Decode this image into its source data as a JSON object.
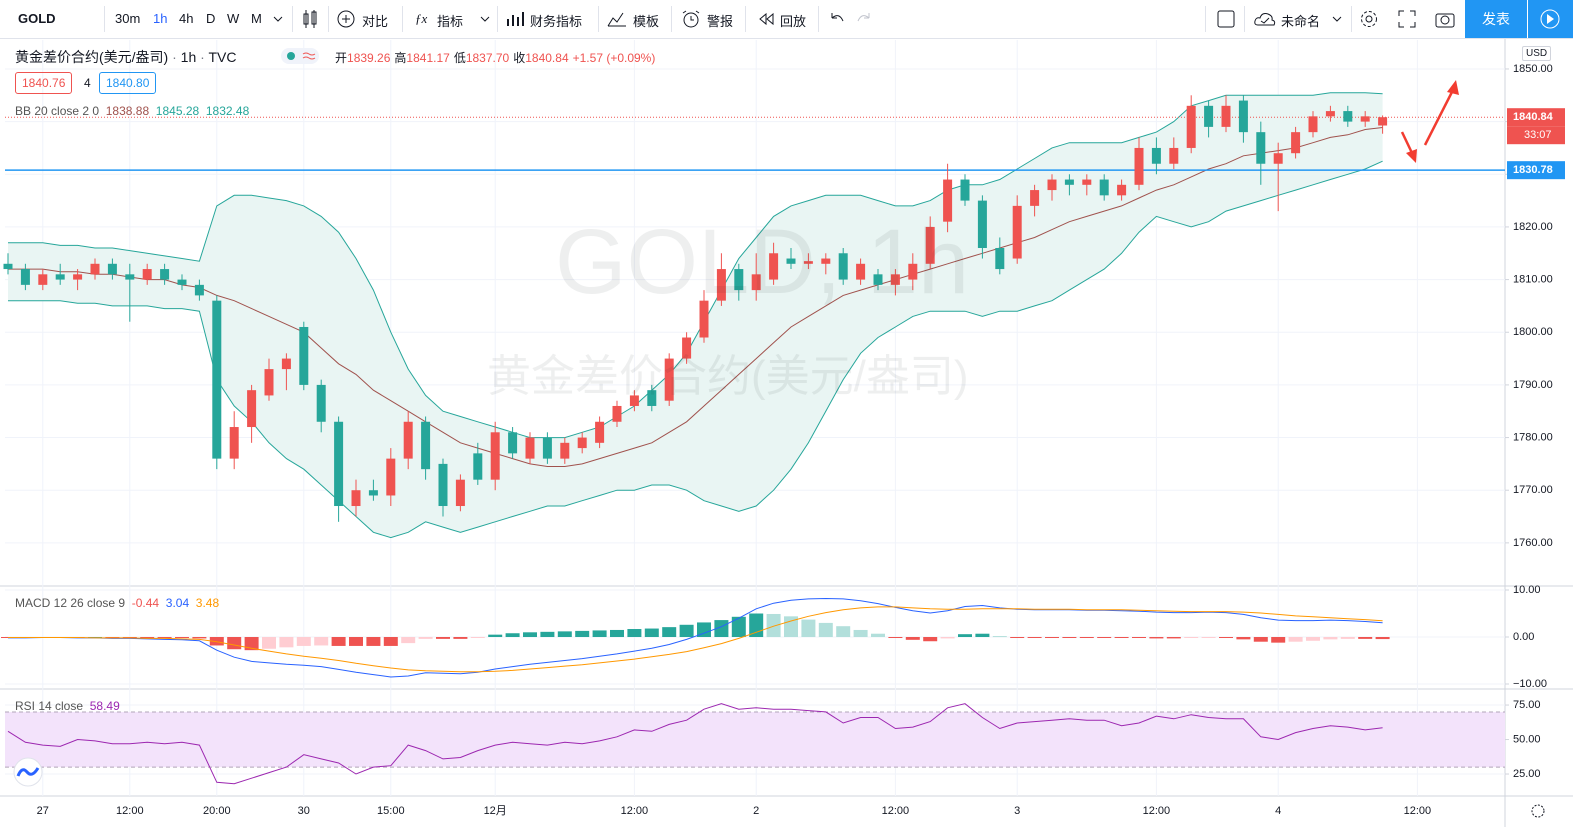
{
  "toolbar": {
    "symbol": "GOLD",
    "intervals": [
      "30m",
      "1h",
      "4h",
      "D",
      "W",
      "M"
    ],
    "buttons": [
      "对比",
      "指标",
      "财务指标",
      "模板",
      "警报",
      "回放"
    ],
    "layout_name": "未命名",
    "publish": "发表"
  },
  "header": {
    "title": "黄金差价合约(美元/盎司)",
    "interval": "1h",
    "source": "TVC",
    "ohlc": [
      {
        "key": "开",
        "text": "1839.26"
      },
      {
        "key": "高",
        "text": "1841.17"
      },
      {
        "key": "低",
        "text": "1837.70"
      },
      {
        "key": "收",
        "text": "1840.84"
      }
    ],
    "change": "+1.57 (+0.09%)",
    "bid": "1840.76",
    "spread": "4",
    "ask": "1840.80",
    "watermark": "GOLD, 1h",
    "watermark_sub": "黄金差价合约(美元/盎司)",
    "currency": "USD",
    "countdown": "33:07"
  },
  "chart_data": {
    "type": "candlestick",
    "up_color": "#ef5350",
    "down_color": "#26a69a",
    "grid": true,
    "categories": [
      null,
      null,
      "27",
      null,
      null,
      null,
      null,
      "12:00",
      null,
      null,
      null,
      null,
      "20:00",
      null,
      null,
      null,
      null,
      "30",
      null,
      null,
      null,
      null,
      "15:00",
      null,
      null,
      null,
      null,
      null,
      "12月",
      null,
      null,
      null,
      null,
      null,
      null,
      null,
      "12:00",
      null,
      null,
      null,
      null,
      null,
      null,
      "2",
      null,
      null,
      null,
      null,
      null,
      null,
      null,
      "12:00",
      null,
      null,
      null,
      null,
      null,
      null,
      "3",
      null,
      null,
      null,
      null,
      null,
      null,
      null,
      "12:00",
      null,
      null,
      null,
      null,
      null,
      null,
      "4",
      null,
      null,
      null,
      null,
      null,
      null,
      null,
      "12:00"
    ],
    "open": [
      1813,
      1812,
      1809,
      1811,
      1810,
      1811,
      1813,
      1811,
      1810,
      1812,
      1810,
      1809,
      1806,
      1776,
      1782,
      1788,
      1793,
      1801,
      1790,
      1783,
      1767,
      1770,
      1769,
      1776,
      1783,
      1775,
      1767,
      1777,
      1772,
      1781,
      1776,
      1780,
      1776,
      1778,
      1779,
      1783,
      1786,
      1789,
      1787,
      1795,
      1799,
      1806,
      1812,
      1808,
      1810,
      1814,
      1813,
      1813,
      1815,
      1810,
      1811,
      1809,
      1810,
      1813,
      1821,
      1829,
      1825,
      1816,
      1814,
      1824,
      1827,
      1829,
      1828,
      1829,
      1826,
      1828,
      1835,
      1832,
      1835,
      1843,
      1839,
      1844,
      1838,
      1832,
      1834,
      1838,
      1841,
      1842,
      1840,
      1839.26,
      null,
      null
    ],
    "high": [
      1815,
      1813,
      1812,
      1813,
      1812,
      1814,
      1814,
      1813,
      1813,
      1813,
      1811,
      1810,
      1807,
      1785,
      1790,
      1795,
      1796,
      1802,
      1791,
      1784,
      1772,
      1772,
      1778,
      1785,
      1784,
      1776,
      1773,
      1779,
      1783,
      1782,
      1781,
      1781,
      1780,
      1781,
      1784,
      1787,
      1789,
      1790,
      1796,
      1800,
      1808,
      1815,
      1813,
      1815,
      1817,
      1816,
      1815,
      1815,
      1816,
      1814,
      1812,
      1812,
      1815,
      1822,
      1832,
      1830,
      1826,
      1818,
      1826,
      1828,
      1830,
      1830,
      1830,
      1830,
      1829,
      1837,
      1837,
      1837,
      1845,
      1844,
      1845,
      1845,
      1840,
      1836,
      1839,
      1842,
      1843,
      1843,
      1842,
      1841.17,
      null,
      null
    ],
    "low": [
      1811,
      1808,
      1808,
      1809,
      1808,
      1810,
      1810,
      1802,
      1809,
      1809,
      1808,
      1806,
      1774,
      1774,
      1779,
      1787,
      1789,
      1789,
      1781,
      1764,
      1765,
      1768,
      1767,
      1774,
      1772,
      1765,
      1766,
      1771,
      1770,
      1776,
      1775,
      1775,
      1775,
      1777,
      1778,
      1782,
      1785,
      1785,
      1786,
      1794,
      1798,
      1805,
      1806,
      1806,
      1809,
      1812,
      1812,
      1811,
      1809,
      1809,
      1808,
      1807,
      1808,
      1812,
      1819,
      1824,
      1814,
      1811,
      1813,
      1822,
      1825,
      1826,
      1826,
      1825,
      1825,
      1827,
      1830,
      1831,
      1834,
      1837,
      1838,
      1836,
      1828,
      1823,
      1833,
      1837,
      1840,
      1839,
      1839,
      1837.7,
      null,
      null
    ],
    "close": [
      1812,
      1809,
      1811,
      1810,
      1811,
      1813,
      1811,
      1810,
      1812,
      1810,
      1809,
      1807,
      1776,
      1782,
      1789,
      1793,
      1795,
      1790,
      1783,
      1767,
      1770,
      1769,
      1776,
      1783,
      1774,
      1767,
      1772,
      1772,
      1781,
      1777,
      1780,
      1776,
      1779,
      1780,
      1783,
      1786,
      1788,
      1786,
      1795,
      1799,
      1806,
      1812,
      1808,
      1811,
      1815,
      1813,
      1813.5,
      1814,
      1810,
      1813,
      1809,
      1811,
      1813,
      1820,
      1829,
      1825,
      1816,
      1812,
      1824,
      1827,
      1829,
      1828,
      1829,
      1826,
      1828,
      1835,
      1832,
      1835,
      1843,
      1839,
      1843,
      1838,
      1832,
      1834,
      1838,
      1841,
      1842,
      1840,
      1841,
      1840.84,
      null,
      null
    ],
    "ylim": [
      1752,
      1855.5
    ],
    "yticks": [
      {
        "value": 1760,
        "label": "1760.00"
      },
      {
        "value": 1770,
        "label": "1770.00"
      },
      {
        "value": 1780,
        "label": "1780.00"
      },
      {
        "value": 1790,
        "label": "1790.00"
      },
      {
        "value": 1800,
        "label": "1800.00"
      },
      {
        "value": 1810,
        "label": "1810.00"
      },
      {
        "value": 1820,
        "label": "1820.00"
      },
      {
        "value": 1830,
        "label": "1830.00"
      },
      {
        "value": 1840,
        "label": "1840.00"
      },
      {
        "value": 1850,
        "label": "1850.00"
      }
    ],
    "hline": {
      "value": 1830.78,
      "color": "#2196f3"
    },
    "indicators": {
      "bb": {
        "label": "BB 20 close 2 0",
        "band_color": "#26a69a",
        "mid_color": "#a0524d",
        "fill": "#e9f5f3",
        "upper": [
          1817,
          1817,
          1817,
          1816.5,
          1816.5,
          1816,
          1816,
          1815.5,
          1815,
          1814.5,
          1814,
          1813.5,
          1824,
          1826,
          1826,
          1825.5,
          1825,
          1824,
          1822,
          1819,
          1814,
          1808,
          1800,
          1793,
          1788,
          1785,
          1784,
          1783,
          1782,
          1781,
          1780,
          1780,
          1780,
          1781,
          1782,
          1784,
          1786,
          1789,
          1792,
          1796,
          1802,
          1808,
          1814,
          1818,
          1822,
          1824,
          1825,
          1826,
          1826,
          1826,
          1825,
          1824,
          1824,
          1825,
          1827,
          1828,
          1828,
          1829,
          1831,
          1833,
          1835,
          1836,
          1836,
          1836,
          1836,
          1837,
          1838,
          1840,
          1843,
          1844,
          1845,
          1845,
          1845,
          1845,
          1845,
          1845,
          1845.5,
          1845.5,
          1845.5,
          1845.28,
          null,
          null
        ],
        "mid": [
          1812,
          1812,
          1812,
          1811.5,
          1811.5,
          1811,
          1811,
          1810.5,
          1810,
          1810,
          1809,
          1808.5,
          1807,
          1806,
          1804.5,
          1803,
          1801.5,
          1800,
          1797,
          1794,
          1792,
          1789,
          1787,
          1785,
          1783,
          1781,
          1779,
          1778,
          1777,
          1776,
          1775,
          1774.5,
          1774.5,
          1775,
          1776,
          1777,
          1778,
          1779,
          1781,
          1783,
          1786,
          1789,
          1792,
          1795,
          1798,
          1801,
          1803,
          1805,
          1807,
          1808,
          1809,
          1810,
          1811,
          1812,
          1813,
          1814,
          1815,
          1816,
          1817,
          1818,
          1819.5,
          1821,
          1822,
          1823,
          1824,
          1825.5,
          1827,
          1828,
          1829.5,
          1831,
          1832,
          1833.5,
          1834,
          1834.5,
          1835,
          1836,
          1837,
          1837.5,
          1838.5,
          1838.88,
          null,
          null
        ],
        "lower": [
          1806,
          1806,
          1806,
          1806,
          1805.5,
          1805.5,
          1805,
          1805,
          1805,
          1804.5,
          1804.5,
          1804,
          1791,
          1786,
          1783,
          1779,
          1776,
          1774,
          1771,
          1768,
          1765,
          1762,
          1761,
          1762,
          1764,
          1763,
          1762,
          1763,
          1764,
          1765,
          1766,
          1767,
          1767,
          1768,
          1769,
          1770,
          1770,
          1771,
          1771,
          1770,
          1768,
          1767,
          1766,
          1767,
          1770,
          1774,
          1779,
          1785,
          1791,
          1796,
          1799,
          1801,
          1803,
          1804,
          1804,
          1804,
          1803,
          1804,
          1804,
          1805,
          1806,
          1808,
          1810,
          1812,
          1815,
          1819,
          1822,
          1821,
          1820,
          1821,
          1823,
          1824,
          1825,
          1826,
          1827,
          1828,
          1829,
          1830,
          1831,
          1832.48,
          null,
          null
        ]
      },
      "macd": {
        "label": "MACD 12 26 close 9",
        "macd_color": "#2962ff",
        "signal_color": "#ff9800",
        "hist": [
          -0.1,
          -0.1,
          0,
          0,
          -0.1,
          0,
          -0.1,
          -0.1,
          -0.1,
          -0.2,
          -0.2,
          -0.3,
          -1.8,
          -2.6,
          -2.8,
          -2.5,
          -2.2,
          -1.9,
          -1.8,
          -1.9,
          -1.9,
          -1.9,
          -1.9,
          -1.3,
          -0.4,
          -0.4,
          -0.4,
          -0.1,
          0.5,
          0.8,
          1,
          1.1,
          1.2,
          1.3,
          1.4,
          1.5,
          1.7,
          1.8,
          2.1,
          2.6,
          3.1,
          3.6,
          4.3,
          5,
          4.9,
          4.4,
          3.7,
          3,
          2.3,
          1.5,
          0.7,
          -0.1,
          -0.6,
          -0.9,
          -0.3,
          0.6,
          0.7,
          0.2,
          -0.1,
          -0.1,
          -0.1,
          -0.1,
          -0.1,
          -0.1,
          -0.2,
          -0.2,
          -0.3,
          -0.3,
          -0.2,
          -0.1,
          -0.2,
          -0.5,
          -1,
          -1.2,
          -1,
          -0.8,
          -0.5,
          -0.4,
          -0.4,
          -0.44,
          null,
          null
        ],
        "macd": [
          -0.2,
          -0.2,
          -0.1,
          -0.1,
          -0.2,
          -0.2,
          -0.3,
          -0.3,
          -0.4,
          -0.5,
          -0.6,
          -0.8,
          -2.8,
          -4.3,
          -5.2,
          -5.5,
          -5.8,
          -6,
          -6.3,
          -6.9,
          -7.5,
          -8,
          -8.5,
          -8.3,
          -7.6,
          -7.7,
          -7.8,
          -7.5,
          -6.8,
          -6.3,
          -5.8,
          -5.4,
          -5,
          -4.6,
          -4.1,
          -3.6,
          -3,
          -2.4,
          -1.6,
          -0.5,
          0.8,
          2.2,
          4,
          6,
          7.2,
          7.8,
          8.1,
          8.2,
          8.1,
          7.7,
          7.1,
          6.3,
          5.6,
          5.1,
          5.6,
          6.5,
          6.7,
          6.2,
          5.9,
          5.8,
          5.8,
          5.8,
          5.7,
          5.7,
          5.6,
          5.5,
          5.3,
          5.2,
          5.2,
          5.3,
          5.2,
          4.8,
          4.1,
          3.6,
          3.5,
          3.5,
          3.6,
          3.5,
          3.3,
          3.04,
          null,
          null
        ],
        "signal": [
          -0.1,
          -0.1,
          -0.1,
          -0.1,
          -0.1,
          -0.2,
          -0.2,
          -0.2,
          -0.3,
          -0.3,
          -0.4,
          -0.5,
          -1,
          -1.7,
          -2.4,
          -3,
          -3.6,
          -4.1,
          -4.5,
          -5,
          -5.6,
          -6.1,
          -6.6,
          -7,
          -7.2,
          -7.3,
          -7.4,
          -7.4,
          -7.3,
          -7.1,
          -6.8,
          -6.5,
          -6.2,
          -5.9,
          -5.5,
          -5.1,
          -4.7,
          -4.2,
          -3.7,
          -3.1,
          -2.3,
          -1.4,
          -0.3,
          1,
          2.3,
          3.4,
          4.4,
          5.2,
          5.8,
          6.2,
          6.4,
          6.4,
          6.2,
          6,
          5.9,
          5.9,
          6,
          6,
          6,
          5.9,
          5.9,
          5.9,
          5.8,
          5.8,
          5.8,
          5.7,
          5.6,
          5.5,
          5.4,
          5.4,
          5.4,
          5.3,
          5.1,
          4.8,
          4.5,
          4.3,
          4.1,
          3.9,
          3.7,
          3.48,
          null,
          null
        ],
        "ylim": [
          -10.85,
          10.64
        ],
        "yticks": [
          {
            "value": 10,
            "label": "10.00"
          },
          {
            "value": 0,
            "label": "0.00"
          },
          {
            "value": -10,
            "label": "−10.00"
          }
        ]
      },
      "rsi": {
        "label": "RSI 14 close",
        "color": "#9c27b0",
        "band_fill": "#f3e3fb",
        "band": [
          30,
          70
        ],
        "values": [
          56,
          48,
          46,
          45,
          50,
          49,
          47,
          47,
          48,
          47,
          48,
          46,
          19,
          18,
          22,
          26,
          30,
          39,
          36,
          33,
          25,
          30,
          31,
          46,
          42,
          36,
          37,
          42,
          46,
          48,
          47,
          46,
          48,
          47,
          49,
          52,
          57,
          56,
          61,
          64,
          72,
          76,
          72,
          73,
          72,
          72,
          71,
          70,
          62,
          66,
          66,
          58,
          59,
          63,
          73,
          76,
          66,
          58,
          62,
          63,
          64,
          65,
          64,
          64,
          60,
          62,
          67,
          65,
          68,
          66,
          65,
          65,
          52,
          50,
          55,
          58,
          60,
          59,
          57,
          58.49,
          null,
          null
        ],
        "ylim": [
          9.8,
          85.9
        ],
        "yticks": [
          {
            "value": 75,
            "label": "75.00"
          },
          {
            "value": 50,
            "label": "50.00"
          },
          {
            "value": 25,
            "label": "25.00"
          }
        ]
      }
    }
  }
}
